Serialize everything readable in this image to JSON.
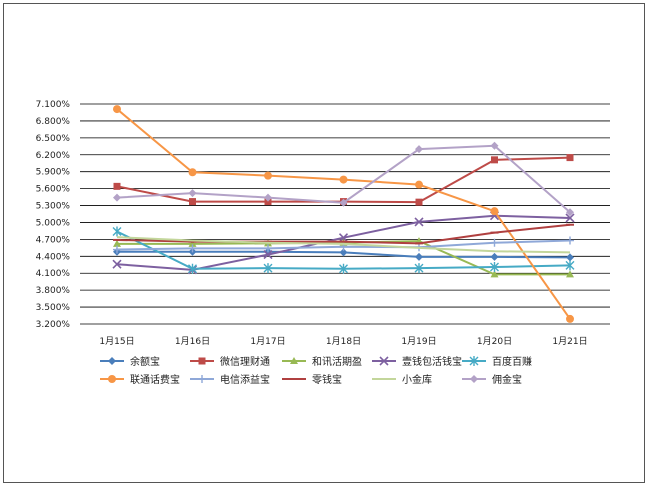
{
  "chart_data": {
    "type": "line",
    "title": "",
    "xlabel": "",
    "ylabel": "",
    "categories": [
      "1月15日",
      "1月16日",
      "1月17日",
      "1月18日",
      "1月19日",
      "1月20日",
      "1月21日"
    ],
    "ylim": [
      3.2,
      7.1
    ],
    "yticks": [
      "7.100%",
      "6.800%",
      "6.500%",
      "6.200%",
      "5.900%",
      "5.600%",
      "5.300%",
      "5.000%",
      "4.700%",
      "4.400%",
      "4.100%",
      "3.800%",
      "3.500%",
      "3.200%"
    ],
    "grid": true,
    "legend_position": "bottom",
    "series": [
      {
        "name": "余额宝",
        "color": "#4a7ebb",
        "marker": "diamond",
        "values": [
          4.48,
          4.48,
          4.48,
          4.47,
          4.39,
          4.39,
          4.38
        ]
      },
      {
        "name": "微信理财通",
        "color": "#be4b48",
        "marker": "square",
        "values": [
          5.64,
          5.37,
          5.37,
          5.37,
          5.36,
          6.11,
          6.15
        ]
      },
      {
        "name": "和讯活期盈",
        "color": "#98b954",
        "marker": "triangle",
        "values": [
          4.62,
          4.62,
          4.63,
          4.64,
          4.67,
          4.08,
          4.08
        ]
      },
      {
        "name": "壹钱包活钱宝",
        "color": "#7d60a0",
        "marker": "x",
        "values": [
          4.26,
          4.16,
          4.43,
          4.73,
          5.01,
          5.12,
          5.08
        ]
      },
      {
        "name": "百度百赚",
        "color": "#46aac5",
        "marker": "star",
        "values": [
          4.84,
          4.18,
          4.19,
          4.18,
          4.19,
          4.21,
          4.24
        ]
      },
      {
        "name": "联通话费宝",
        "color": "#f79646",
        "marker": "circle",
        "values": [
          7.01,
          5.89,
          5.83,
          5.76,
          5.67,
          5.2,
          3.29
        ]
      },
      {
        "name": "电信添益宝",
        "color": "#8fa8d8",
        "marker": "plus",
        "values": [
          4.52,
          4.54,
          4.54,
          4.57,
          4.56,
          4.64,
          4.68
        ]
      },
      {
        "name": "零钱宝",
        "color": "#b04040",
        "marker": "dash",
        "values": [
          4.69,
          4.66,
          4.66,
          4.66,
          4.63,
          4.82,
          4.96
        ]
      },
      {
        "name": "小金库",
        "color": "#c3d69b",
        "marker": "none",
        "values": [
          4.74,
          4.68,
          4.64,
          4.62,
          4.55,
          4.49,
          4.47
        ]
      },
      {
        "name": "佣金宝",
        "color": "#b3a2c7",
        "marker": "diamond",
        "values": [
          5.44,
          5.52,
          5.44,
          5.35,
          6.3,
          6.36,
          5.18
        ]
      }
    ]
  }
}
